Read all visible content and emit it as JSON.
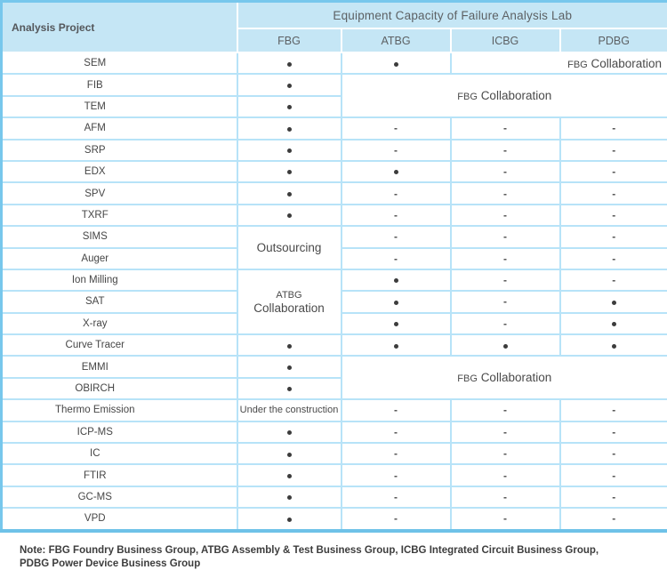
{
  "table": {
    "corner_header": "Analysis Project",
    "group_header": "Equipment Capacity of Failure Analysis Lab",
    "columns": [
      "FBG",
      "ATBG",
      "ICBG",
      "PDBG"
    ],
    "legend": {
      "available_glyph": "dot",
      "unavailable_glyph": "-"
    },
    "rows": [
      {
        "label": "SEM",
        "cells": [
          {
            "t": "dot"
          },
          {
            "t": "dot"
          },
          {
            "t": "text",
            "text": "FBG Collaboration",
            "colspan": 2,
            "cls": "right shrink-first"
          }
        ]
      },
      {
        "label": "FIB",
        "cells": [
          {
            "t": "dot"
          },
          {
            "t": "text",
            "text": "FBG Collaboration",
            "colspan": 3,
            "rowspan": 2,
            "cls": "shrink-first"
          }
        ]
      },
      {
        "label": "TEM",
        "cells": [
          {
            "t": "dot"
          }
        ]
      },
      {
        "label": "AFM",
        "cells": [
          {
            "t": "dot"
          },
          {
            "t": "dash"
          },
          {
            "t": "dash"
          },
          {
            "t": "dash"
          }
        ]
      },
      {
        "label": "SRP",
        "cells": [
          {
            "t": "dot"
          },
          {
            "t": "dash"
          },
          {
            "t": "dash"
          },
          {
            "t": "dash"
          }
        ]
      },
      {
        "label": "EDX",
        "cells": [
          {
            "t": "dot"
          },
          {
            "t": "dot"
          },
          {
            "t": "dash"
          },
          {
            "t": "dash"
          }
        ]
      },
      {
        "label": "SPV",
        "cells": [
          {
            "t": "dot"
          },
          {
            "t": "dash"
          },
          {
            "t": "dash"
          },
          {
            "t": "dash"
          }
        ]
      },
      {
        "label": "TXRF",
        "cells": [
          {
            "t": "dot"
          },
          {
            "t": "dash"
          },
          {
            "t": "dash"
          },
          {
            "t": "dash"
          }
        ]
      },
      {
        "label": "SIMS",
        "cells": [
          {
            "t": "text",
            "text": "Outsourcing",
            "rowspan": 2
          },
          {
            "t": "dash"
          },
          {
            "t": "dash"
          },
          {
            "t": "dash"
          }
        ]
      },
      {
        "label": "Auger",
        "cells": [
          {
            "t": "dash"
          },
          {
            "t": "dash"
          },
          {
            "t": "dash"
          }
        ]
      },
      {
        "label": "Ion Milling",
        "cells": [
          {
            "t": "text",
            "text": "ATBG\nCollaboration",
            "rowspan": 3,
            "cls": "preline shrink-first"
          },
          {
            "t": "dot"
          },
          {
            "t": "dash"
          },
          {
            "t": "dash"
          }
        ]
      },
      {
        "label": "SAT",
        "cells": [
          {
            "t": "dot"
          },
          {
            "t": "dash"
          },
          {
            "t": "dot"
          }
        ]
      },
      {
        "label": "X-ray",
        "cells": [
          {
            "t": "dot"
          },
          {
            "t": "dash"
          },
          {
            "t": "dot"
          }
        ]
      },
      {
        "label": "Curve Tracer",
        "cells": [
          {
            "t": "dot"
          },
          {
            "t": "dot"
          },
          {
            "t": "dot"
          },
          {
            "t": "dot"
          }
        ]
      },
      {
        "label": "EMMI",
        "cells": [
          {
            "t": "dot"
          },
          {
            "t": "text",
            "text": "FBG Collaboration",
            "colspan": 3,
            "rowspan": 2,
            "cls": "shrink-first"
          }
        ]
      },
      {
        "label": "OBIRCH",
        "cells": [
          {
            "t": "dot"
          }
        ]
      },
      {
        "label": "Thermo Emission",
        "cells": [
          {
            "t": "text",
            "text": "Under the construction",
            "cls": "small"
          },
          {
            "t": "dash"
          },
          {
            "t": "dash"
          },
          {
            "t": "dash"
          }
        ]
      },
      {
        "label": "ICP-MS",
        "cells": [
          {
            "t": "dot"
          },
          {
            "t": "dash"
          },
          {
            "t": "dash"
          },
          {
            "t": "dash"
          }
        ]
      },
      {
        "label": "IC",
        "cells": [
          {
            "t": "dot"
          },
          {
            "t": "dash"
          },
          {
            "t": "dash"
          },
          {
            "t": "dash"
          }
        ]
      },
      {
        "label": "FTIR",
        "cells": [
          {
            "t": "dot"
          },
          {
            "t": "dash"
          },
          {
            "t": "dash"
          },
          {
            "t": "dash"
          }
        ]
      },
      {
        "label": "GC-MS",
        "cells": [
          {
            "t": "dot"
          },
          {
            "t": "dash"
          },
          {
            "t": "dash"
          },
          {
            "t": "dash"
          }
        ]
      },
      {
        "label": "VPD",
        "cells": [
          {
            "t": "dot"
          },
          {
            "t": "dash"
          },
          {
            "t": "dash"
          },
          {
            "t": "dash"
          }
        ]
      }
    ]
  },
  "note": {
    "line1": "Note: FBG Foundry Business Group, ATBG Assembly & Test Business Group, ICBG Integrated Circuit Business Group,",
    "line2": "PDBG Power Device Business Group"
  },
  "colors": {
    "header_bg": "#c5e6f5",
    "outer_border": "#77c7ec",
    "grid_border": "#b7e3f8",
    "header_text": "#5d6164",
    "body_text": "#474747"
  }
}
